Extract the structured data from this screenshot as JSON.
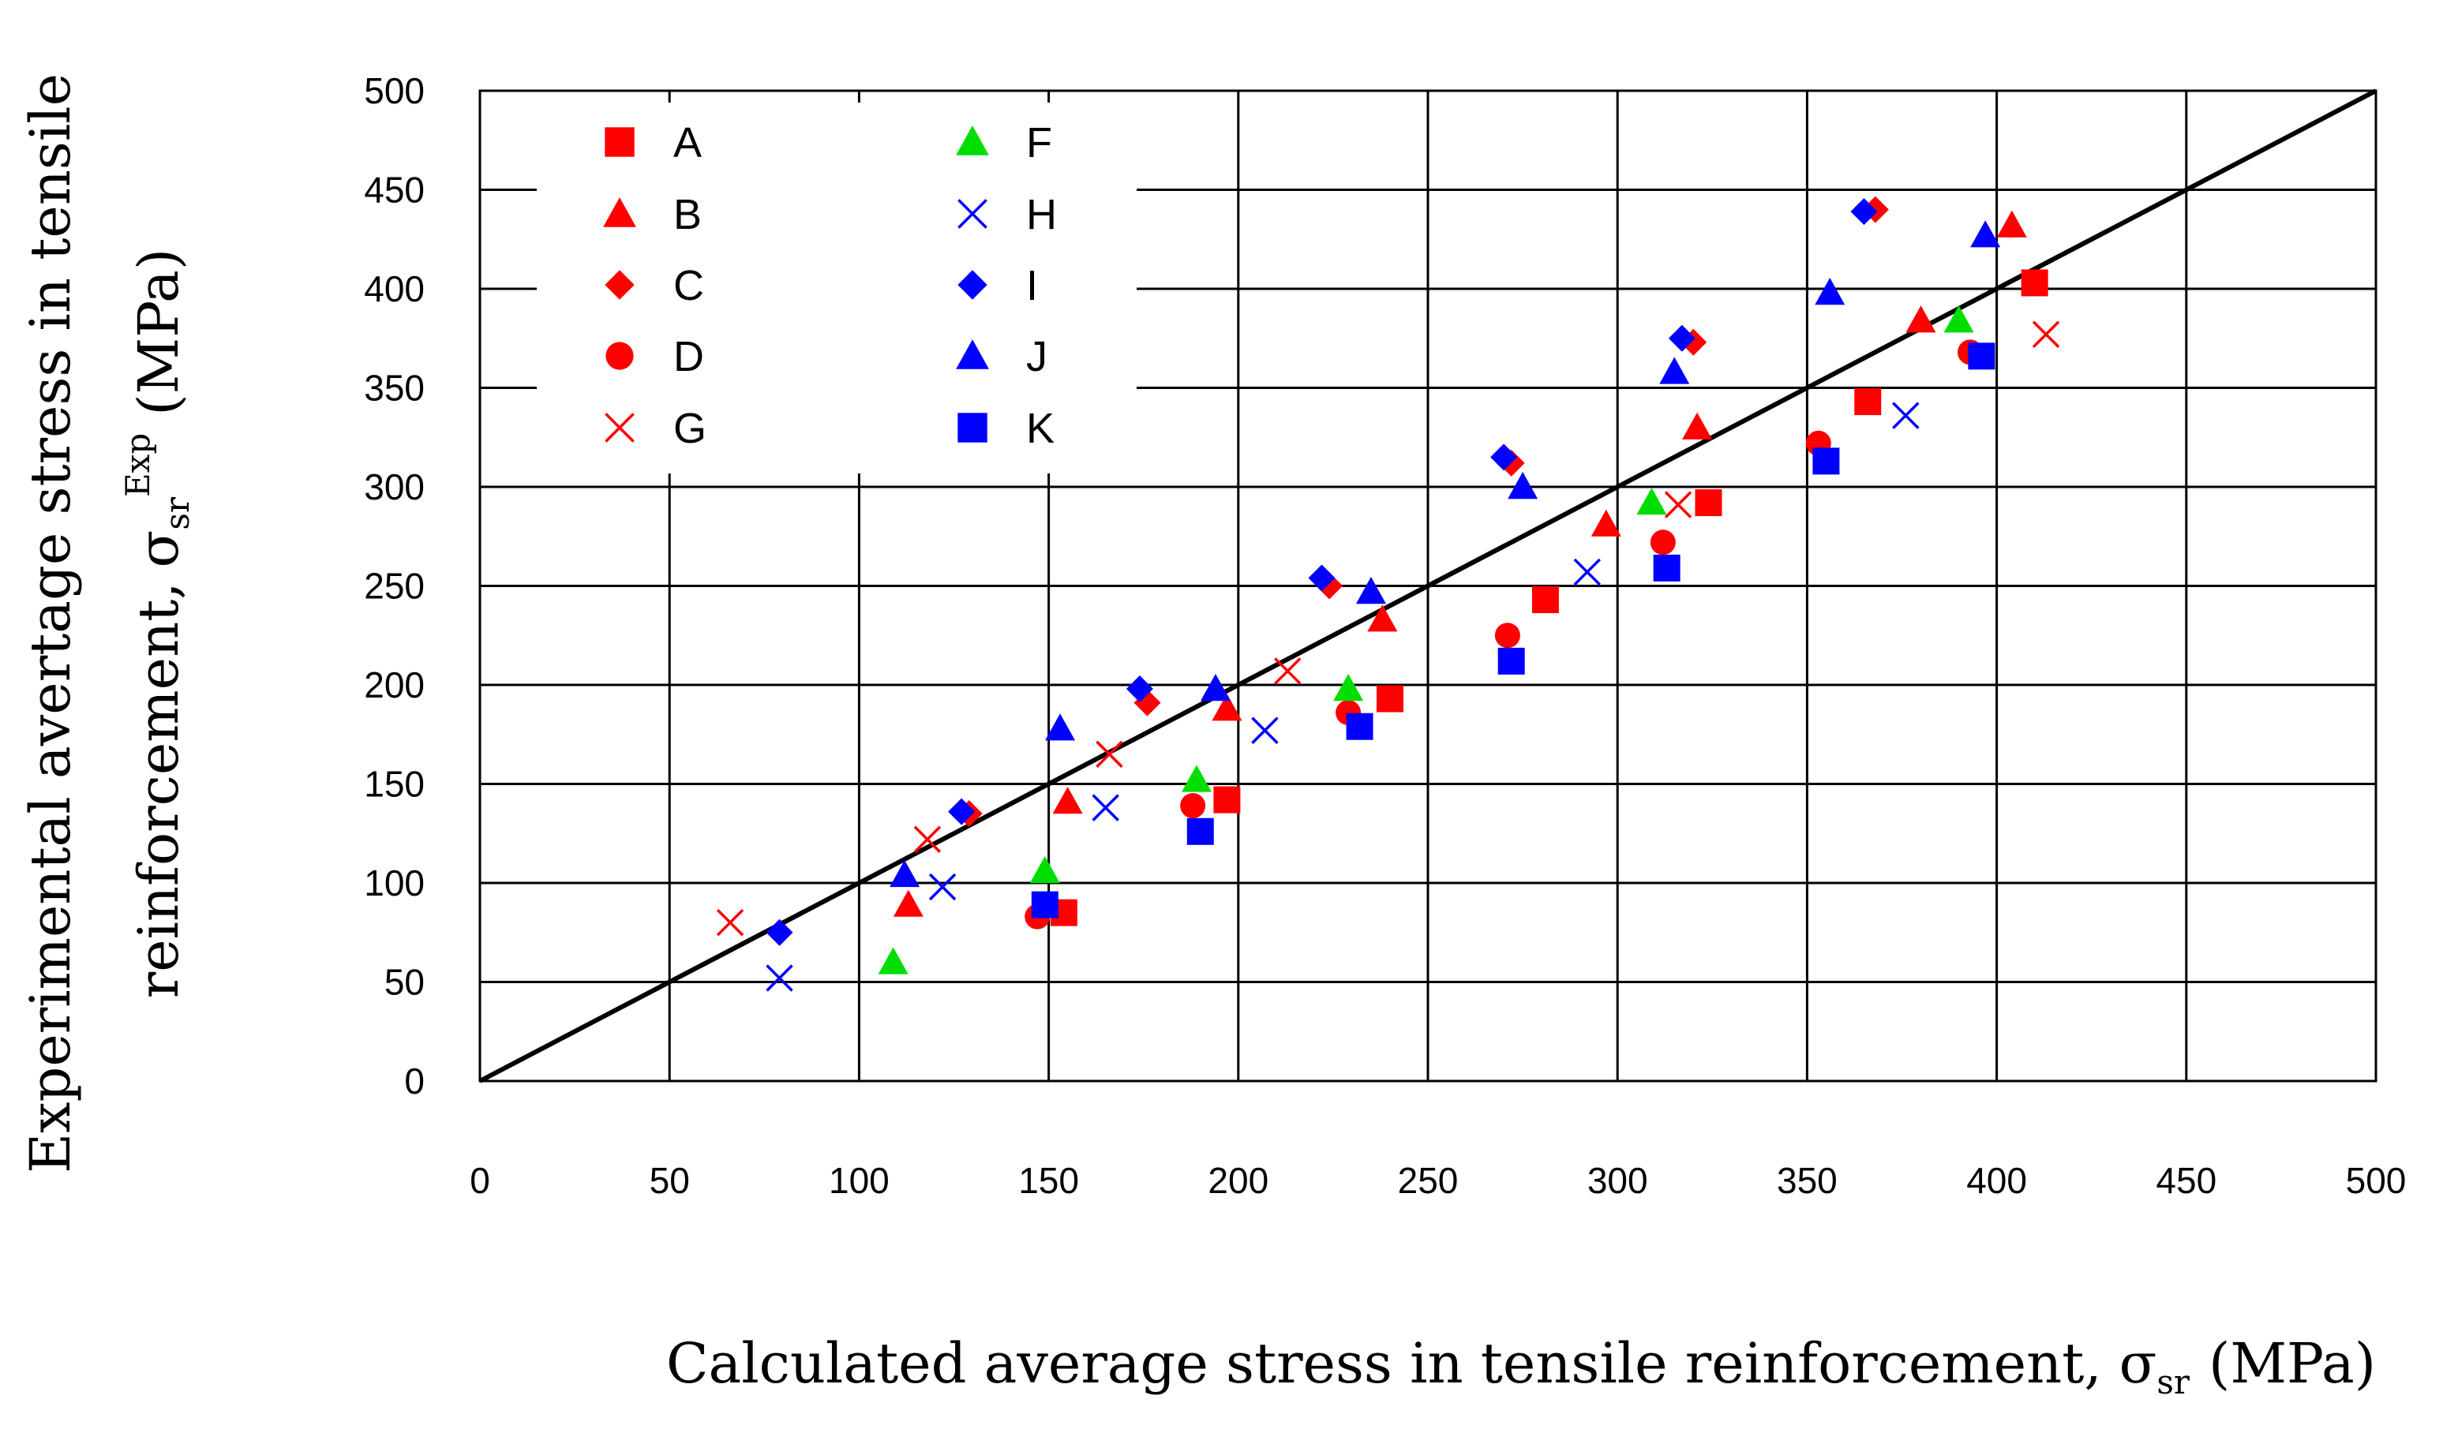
{
  "chart_data": {
    "type": "scatter",
    "title": "",
    "xlabel": {
      "text": "Calculated average stress in tensile reinforcement,",
      "symbol": "σ",
      "subscript": "sr",
      "units": "(MPa)"
    },
    "ylabel": {
      "line1": "Experimental avertage stress in tensile",
      "line2": "reinforcement,",
      "symbol": "σ",
      "subscript": "sr",
      "superscript": "Exp",
      "units": "(MPa)"
    },
    "xlim": [
      0,
      500
    ],
    "ylim": [
      0,
      500
    ],
    "xticks": [
      "0",
      "50",
      "100",
      "150",
      "200",
      "250",
      "300",
      "350",
      "400",
      "450",
      "500"
    ],
    "yticks": [
      "0",
      "50",
      "100",
      "150",
      "200",
      "250",
      "300",
      "350",
      "400",
      "450",
      "500"
    ],
    "grid": true,
    "legend_position": "top-left",
    "reference_line": {
      "x": [
        0,
        500
      ],
      "y": [
        0,
        500
      ],
      "color": "#000000"
    },
    "colors": {
      "red": "#ff0000",
      "blue": "#0000ff",
      "green": "#00dd00"
    },
    "series": [
      {
        "name": "A",
        "marker": "square",
        "color": "#ff0000",
        "x": [
          154,
          197,
          240,
          281,
          324,
          366,
          410
        ],
        "y": [
          85,
          142,
          193,
          243,
          292,
          343,
          403
        ]
      },
      {
        "name": "B",
        "marker": "triangle",
        "color": "#ff0000",
        "x": [
          113,
          155,
          197,
          238,
          297,
          321,
          380,
          404
        ],
        "y": [
          89,
          141,
          188,
          233,
          281,
          330,
          384,
          432
        ]
      },
      {
        "name": "C",
        "marker": "diamond",
        "color": "#ff0000",
        "x": [
          129,
          176,
          224,
          272,
          320,
          368
        ],
        "y": [
          135,
          191,
          250,
          312,
          373,
          440
        ]
      },
      {
        "name": "D",
        "marker": "circle",
        "color": "#ff0000",
        "x": [
          147,
          188,
          229,
          271,
          312,
          353,
          393
        ],
        "y": [
          83,
          139,
          186,
          225,
          272,
          322,
          368
        ]
      },
      {
        "name": "G",
        "marker": "x",
        "color": "#ff0000",
        "x": [
          66,
          118,
          166,
          213,
          316,
          413
        ],
        "y": [
          80,
          122,
          165,
          207,
          291,
          377
        ]
      },
      {
        "name": "F",
        "marker": "triangle",
        "color": "#00dd00",
        "x": [
          109,
          149,
          189,
          229,
          309,
          390
        ],
        "y": [
          60,
          106,
          152,
          198,
          292,
          384
        ]
      },
      {
        "name": "H",
        "marker": "x",
        "color": "#0000ff",
        "x": [
          79,
          122,
          165,
          207,
          292,
          376
        ],
        "y": [
          52,
          98,
          138,
          177,
          257,
          336
        ]
      },
      {
        "name": "I",
        "marker": "diamond",
        "color": "#0000ff",
        "x": [
          79,
          127,
          174,
          222,
          270,
          317,
          365
        ],
        "y": [
          75,
          136,
          198,
          254,
          315,
          375,
          439
        ]
      },
      {
        "name": "J",
        "marker": "triangle",
        "color": "#0000ff",
        "x": [
          112,
          153,
          194,
          235,
          275,
          315,
          356,
          397
        ],
        "y": [
          104,
          178,
          198,
          247,
          300,
          358,
          398,
          427
        ]
      },
      {
        "name": "K",
        "marker": "square",
        "color": "#0000ff",
        "x": [
          149,
          190,
          232,
          272,
          313,
          355,
          396
        ],
        "y": [
          89,
          126,
          179,
          212,
          259,
          313,
          366
        ]
      }
    ],
    "legend_columns": [
      [
        "A",
        "B",
        "C",
        "D",
        "G"
      ],
      [
        "F",
        "H",
        "I",
        "J",
        "K"
      ]
    ]
  }
}
